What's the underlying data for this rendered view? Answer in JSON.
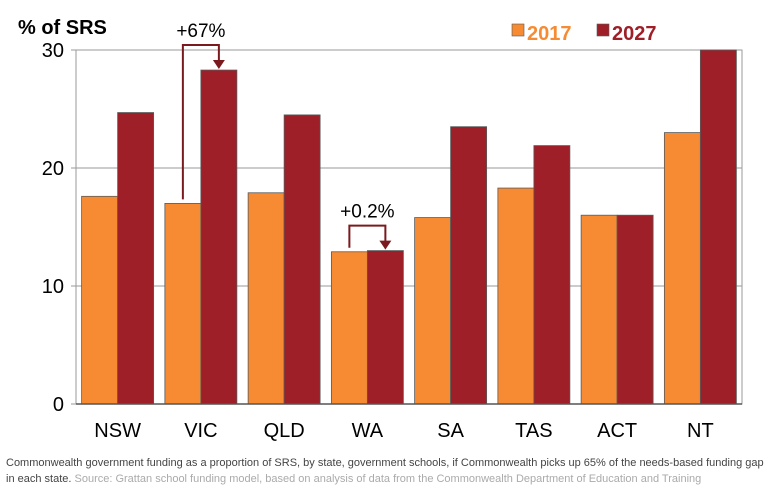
{
  "chart_data": {
    "type": "bar",
    "ylabel": "% of SRS",
    "ylim": [
      0,
      30
    ],
    "yticks": [
      0,
      10,
      20,
      30
    ],
    "grid": true,
    "legend_position": "top-right",
    "categories": [
      "NSW",
      "VIC",
      "QLD",
      "WA",
      "SA",
      "TAS",
      "ACT",
      "NT"
    ],
    "series": [
      {
        "name": "2017",
        "color": "#f68b33",
        "values": [
          17.6,
          17.0,
          17.9,
          12.9,
          15.8,
          18.3,
          16.0,
          23.0
        ]
      },
      {
        "name": "2027",
        "color": "#9e1f27",
        "values": [
          24.7,
          28.3,
          24.5,
          13.0,
          23.5,
          21.9,
          16.0,
          30.0
        ]
      }
    ],
    "annotations": [
      {
        "category": "VIC",
        "text": "+67%"
      },
      {
        "category": "WA",
        "text": "+0.2%"
      }
    ]
  },
  "caption": {
    "text": "Commonwealth government funding as a proportion of SRS, by state, government schools, if Commonwealth picks up 65% of the needs-based funding gap in each state.",
    "source": "Source: Grattan school funding model, based on analysis of data from the Commonwealth Department of Education and Training"
  }
}
